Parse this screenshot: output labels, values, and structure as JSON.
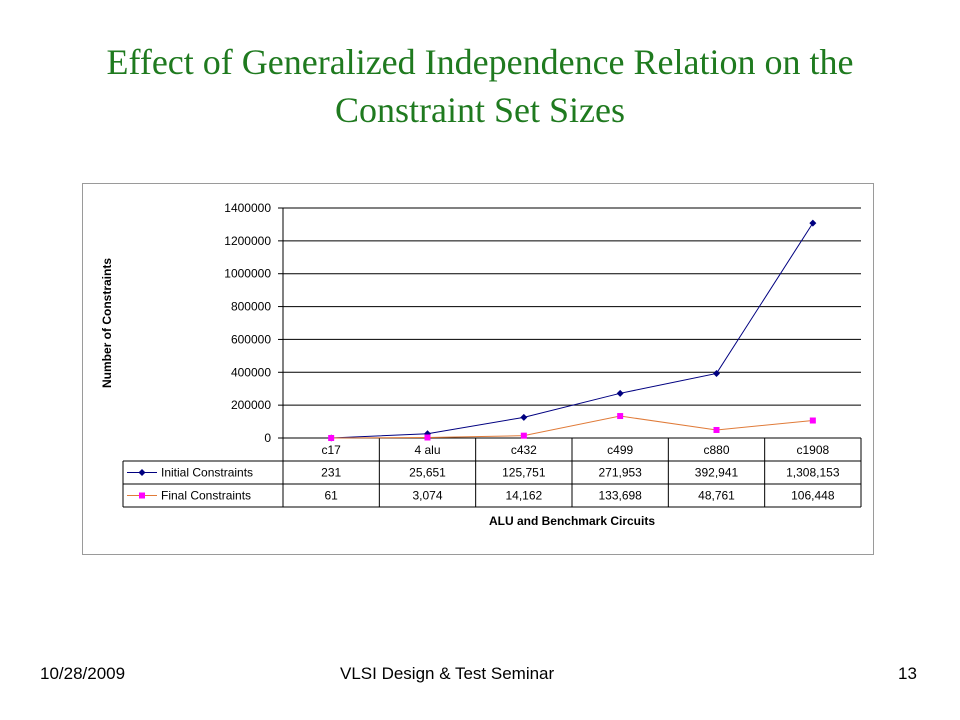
{
  "slide": {
    "title_line1": "Effect of Generalized Independence Relation on the",
    "title_line2": "Constraint Set Sizes",
    "footer_date": "10/28/2009",
    "footer_center": "VLSI Design & Test Seminar",
    "footer_page": "13"
  },
  "chart_data": {
    "type": "line",
    "title": "",
    "xlabel": "ALU and Benchmark Circuits",
    "ylabel": "Number of Constraints",
    "ylim": [
      0,
      1400000
    ],
    "yticks": [
      "1400000",
      "1200000",
      "1000000",
      "800000",
      "600000",
      "400000",
      "200000",
      "0"
    ],
    "grid": true,
    "legend": "data table",
    "categories": [
      "c17",
      "4 alu",
      "c432",
      "c499",
      "c880",
      "c1908"
    ],
    "series": [
      {
        "name": "Initial Constraints",
        "values": [
          231,
          25651,
          125751,
          271953,
          392941,
          1308153
        ],
        "labels": [
          "231",
          "25,651",
          "125,751",
          "271,953",
          "392,941",
          "1,308,153"
        ],
        "color": "#000080",
        "marker": "diamond"
      },
      {
        "name": "Final Constraints",
        "values": [
          61,
          3074,
          14162,
          133698,
          48761,
          106448
        ],
        "labels": [
          "61",
          "3,074",
          "14,162",
          "133,698",
          "48,761",
          "106,448"
        ],
        "line_color": "#e07b39",
        "marker_color": "#ff00ff",
        "marker": "square"
      }
    ]
  }
}
